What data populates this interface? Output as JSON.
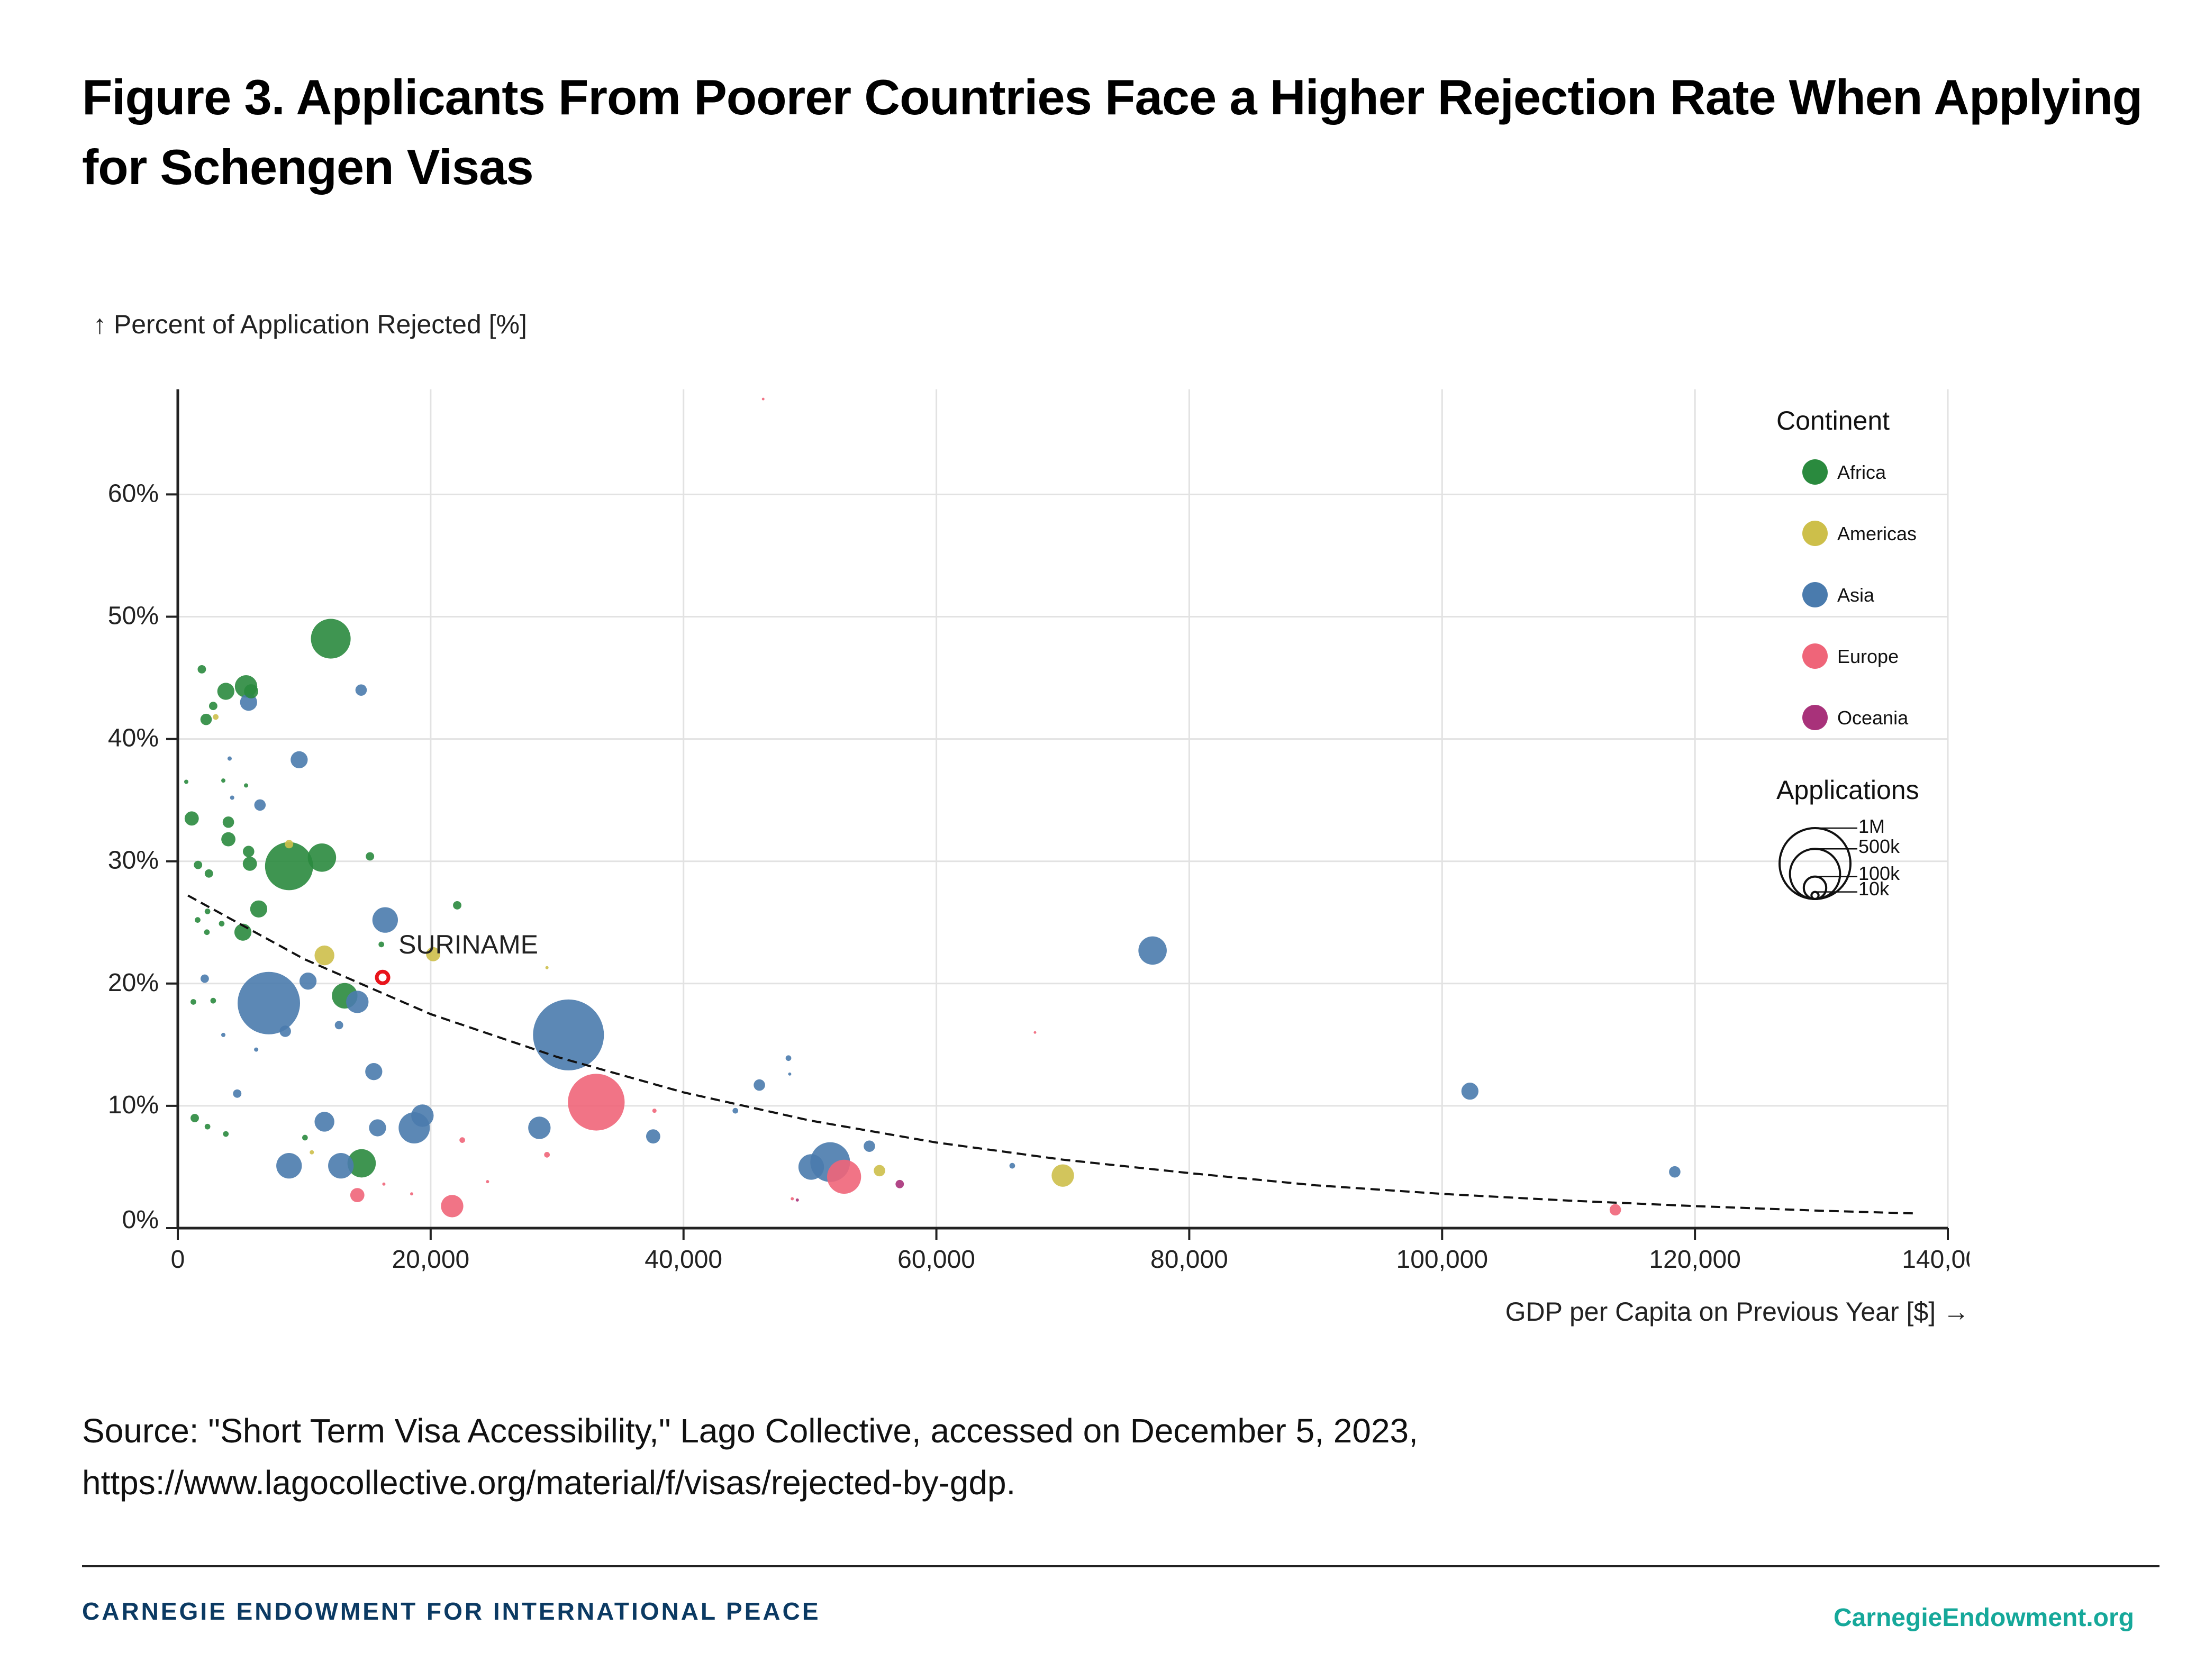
{
  "header": {
    "title": "Figure 3. Applicants From Poorer Countries Face a Higher Rejection Rate When Applying for Schengen Visas"
  },
  "source": "Source: \"Short Term Visa Accessibility,\" Lago Collective, accessed on December 5, 2023, https://www.lagocollective.org/material/f/visas/rejected-by-gdp.",
  "footer": {
    "brand": "CARNEGIE ENDOWMENT FOR INTERNATIONAL PEACE",
    "site": "CarnegieEndowment.org"
  },
  "chart_data": {
    "type": "scatter",
    "title": "",
    "xlabel": "GDP per Capita on Previous Year [$] →",
    "ylabel": "↑ Percent of Application Rejected [%]",
    "xlim": [
      0,
      140000
    ],
    "ylim": [
      0,
      68.6
    ],
    "xticks": [
      0,
      20000,
      40000,
      60000,
      80000,
      100000,
      120000,
      140000
    ],
    "xtick_labels": [
      "0",
      "20,000",
      "40,000",
      "60,000",
      "80,000",
      "100,000",
      "120,000",
      "140,000"
    ],
    "yticks": [
      0,
      10,
      20,
      30,
      40,
      50,
      60
    ],
    "ytick_labels": [
      "0%",
      "10%",
      "20%",
      "30%",
      "40%",
      "50%",
      "60%"
    ],
    "grid": true,
    "legend_placement": "right",
    "color_legend": {
      "title": "Continent",
      "items": [
        {
          "name": "Africa",
          "color": "#2a8a3e"
        },
        {
          "name": "Americas",
          "color": "#cdbf4a"
        },
        {
          "name": "Asia",
          "color": "#4a7bad"
        },
        {
          "name": "Europe",
          "color": "#ef6579"
        },
        {
          "name": "Oceania",
          "color": "#a8327a"
        }
      ]
    },
    "size_legend": {
      "title": "Applications",
      "items": [
        {
          "label": "1M",
          "value": 1000000
        },
        {
          "label": "500k",
          "value": 500000
        },
        {
          "label": "100k",
          "value": 100000
        },
        {
          "label": "10k",
          "value": 10000
        }
      ]
    },
    "annotation": {
      "label": "SURINAME",
      "gdp": 16200,
      "rejected": 20.5,
      "color": "#e8141b"
    },
    "trendline": {
      "style": "dashed",
      "points": [
        [
          800,
          27.2
        ],
        [
          10000,
          22.0
        ],
        [
          20000,
          17.5
        ],
        [
          30000,
          14.0
        ],
        [
          40000,
          11.1
        ],
        [
          50000,
          8.8
        ],
        [
          60000,
          7.0
        ],
        [
          70000,
          5.6
        ],
        [
          80000,
          4.5
        ],
        [
          90000,
          3.5
        ],
        [
          100000,
          2.8
        ],
        [
          110000,
          2.25
        ],
        [
          120000,
          1.8
        ],
        [
          130000,
          1.42
        ],
        [
          137400,
          1.2
        ]
      ]
    },
    "points": [
      {
        "c": "Africa",
        "x": 12100,
        "y": 48.2,
        "apps": 314000
      },
      {
        "c": "Africa",
        "x": 5400,
        "y": 44.3,
        "apps": 100000
      },
      {
        "c": "Africa",
        "x": 3800,
        "y": 43.9,
        "apps": 58000
      },
      {
        "c": "Africa",
        "x": 5800,
        "y": 43.9,
        "apps": 40000
      },
      {
        "c": "Africa",
        "x": 1900,
        "y": 45.7,
        "apps": 14000
      },
      {
        "c": "Africa",
        "x": 2800,
        "y": 42.7,
        "apps": 14000
      },
      {
        "c": "Africa",
        "x": 2240,
        "y": 41.6,
        "apps": 26000
      },
      {
        "c": "Africa",
        "x": 1100,
        "y": 33.5,
        "apps": 40000
      },
      {
        "c": "Africa",
        "x": 4000,
        "y": 33.2,
        "apps": 26000
      },
      {
        "c": "Africa",
        "x": 4000,
        "y": 31.8,
        "apps": 40000
      },
      {
        "c": "Africa",
        "x": 5700,
        "y": 29.8,
        "apps": 40000
      },
      {
        "c": "Africa",
        "x": 5600,
        "y": 30.8,
        "apps": 26000
      },
      {
        "c": "Africa",
        "x": 8800,
        "y": 29.6,
        "apps": 460000
      },
      {
        "c": "Africa",
        "x": 11400,
        "y": 30.3,
        "apps": 160000
      },
      {
        "c": "Africa",
        "x": 15200,
        "y": 30.4,
        "apps": 14000
      },
      {
        "c": "Africa",
        "x": 6400,
        "y": 26.1,
        "apps": 58000
      },
      {
        "c": "Africa",
        "x": 2460,
        "y": 29.0,
        "apps": 14000
      },
      {
        "c": "Africa",
        "x": 1600,
        "y": 29.7,
        "apps": 14000
      },
      {
        "c": "Africa",
        "x": 5150,
        "y": 24.2,
        "apps": 58000
      },
      {
        "c": "Africa",
        "x": 22100,
        "y": 26.4,
        "apps": 14000
      },
      {
        "c": "Africa",
        "x": 13200,
        "y": 19.0,
        "apps": 130000
      },
      {
        "c": "Africa",
        "x": 14540,
        "y": 5.3,
        "apps": 160000
      },
      {
        "c": "Africa",
        "x": 1340,
        "y": 9.0,
        "apps": 14000
      },
      {
        "c": "Africa",
        "x": 2350,
        "y": 8.3,
        "apps": 6400
      },
      {
        "c": "Africa",
        "x": 1230,
        "y": 18.5,
        "apps": 6400
      },
      {
        "c": "Africa",
        "x": 2800,
        "y": 18.6,
        "apps": 6400
      },
      {
        "c": "Africa",
        "x": 1570,
        "y": 25.2,
        "apps": 6400
      },
      {
        "c": "Africa",
        "x": 2350,
        "y": 25.9,
        "apps": 6400
      },
      {
        "c": "Africa",
        "x": 3470,
        "y": 24.9,
        "apps": 6400
      },
      {
        "c": "Africa",
        "x": 2300,
        "y": 24.2,
        "apps": 6400
      },
      {
        "c": "Africa",
        "x": 16100,
        "y": 23.2,
        "apps": 6400
      },
      {
        "c": "Africa",
        "x": 10060,
        "y": 7.4,
        "apps": 6400
      },
      {
        "c": "Africa",
        "x": 3800,
        "y": 7.7,
        "apps": 6400
      },
      {
        "c": "Africa",
        "x": 670,
        "y": 36.5,
        "apps": 3600
      },
      {
        "c": "Africa",
        "x": 3600,
        "y": 36.6,
        "apps": 3600
      },
      {
        "c": "Africa",
        "x": 5400,
        "y": 36.2,
        "apps": 3600
      },
      {
        "c": "Americas",
        "x": 11600,
        "y": 22.3,
        "apps": 78000
      },
      {
        "c": "Americas",
        "x": 20200,
        "y": 22.4,
        "apps": 40000
      },
      {
        "c": "Americas",
        "x": 70000,
        "y": 4.3,
        "apps": 100000
      },
      {
        "c": "Americas",
        "x": 55500,
        "y": 4.7,
        "apps": 26000
      },
      {
        "c": "Americas",
        "x": 3000,
        "y": 41.8,
        "apps": 6400
      },
      {
        "c": "Americas",
        "x": 8800,
        "y": 31.4,
        "apps": 14000
      },
      {
        "c": "Americas",
        "x": 10600,
        "y": 6.2,
        "apps": 3600
      },
      {
        "c": "Americas",
        "x": 29200,
        "y": 21.3,
        "apps": 2000
      },
      {
        "c": "Asia",
        "x": 7200,
        "y": 18.4,
        "apps": 775000
      },
      {
        "c": "Asia",
        "x": 30900,
        "y": 15.8,
        "apps": 1000000
      },
      {
        "c": "Asia",
        "x": 77100,
        "y": 22.7,
        "apps": 160000
      },
      {
        "c": "Asia",
        "x": 102200,
        "y": 11.2,
        "apps": 58000
      },
      {
        "c": "Asia",
        "x": 118400,
        "y": 4.6,
        "apps": 26000
      },
      {
        "c": "Asia",
        "x": 51600,
        "y": 5.4,
        "apps": 314000
      },
      {
        "c": "Asia",
        "x": 50100,
        "y": 5.0,
        "apps": 130000
      },
      {
        "c": "Asia",
        "x": 16400,
        "y": 25.2,
        "apps": 130000
      },
      {
        "c": "Asia",
        "x": 14200,
        "y": 18.5,
        "apps": 100000
      },
      {
        "c": "Asia",
        "x": 9600,
        "y": 38.3,
        "apps": 58000
      },
      {
        "c": "Asia",
        "x": 5600,
        "y": 43.0,
        "apps": 58000
      },
      {
        "c": "Asia",
        "x": 14500,
        "y": 44.0,
        "apps": 26000
      },
      {
        "c": "Asia",
        "x": 6500,
        "y": 34.6,
        "apps": 26000
      },
      {
        "c": "Asia",
        "x": 10300,
        "y": 20.2,
        "apps": 58000
      },
      {
        "c": "Asia",
        "x": 8500,
        "y": 16.1,
        "apps": 26000
      },
      {
        "c": "Asia",
        "x": 2130,
        "y": 20.4,
        "apps": 14000
      },
      {
        "c": "Asia",
        "x": 12750,
        "y": 16.6,
        "apps": 14000
      },
      {
        "c": "Asia",
        "x": 15500,
        "y": 12.8,
        "apps": 58000
      },
      {
        "c": "Asia",
        "x": 4700,
        "y": 11.0,
        "apps": 14000
      },
      {
        "c": "Asia",
        "x": 11600,
        "y": 8.7,
        "apps": 78000
      },
      {
        "c": "Asia",
        "x": 15800,
        "y": 8.2,
        "apps": 58000
      },
      {
        "c": "Asia",
        "x": 18700,
        "y": 8.2,
        "apps": 194000
      },
      {
        "c": "Asia",
        "x": 19350,
        "y": 9.2,
        "apps": 100000
      },
      {
        "c": "Asia",
        "x": 8800,
        "y": 5.1,
        "apps": 130000
      },
      {
        "c": "Asia",
        "x": 12900,
        "y": 5.1,
        "apps": 130000
      },
      {
        "c": "Asia",
        "x": 28600,
        "y": 8.2,
        "apps": 100000
      },
      {
        "c": "Asia",
        "x": 37600,
        "y": 7.5,
        "apps": 40000
      },
      {
        "c": "Asia",
        "x": 46000,
        "y": 11.7,
        "apps": 26000
      },
      {
        "c": "Asia",
        "x": 48300,
        "y": 13.9,
        "apps": 6400
      },
      {
        "c": "Asia",
        "x": 44100,
        "y": 9.6,
        "apps": 6400
      },
      {
        "c": "Asia",
        "x": 54700,
        "y": 6.7,
        "apps": 26000
      },
      {
        "c": "Asia",
        "x": 66000,
        "y": 5.1,
        "apps": 6400
      },
      {
        "c": "Asia",
        "x": 4100,
        "y": 38.4,
        "apps": 3600
      },
      {
        "c": "Asia",
        "x": 4300,
        "y": 35.2,
        "apps": 3600
      },
      {
        "c": "Asia",
        "x": 6200,
        "y": 14.6,
        "apps": 3600
      },
      {
        "c": "Asia",
        "x": 3600,
        "y": 15.8,
        "apps": 3600
      },
      {
        "c": "Asia",
        "x": 48400,
        "y": 12.6,
        "apps": 2000
      },
      {
        "c": "Europe",
        "x": 33100,
        "y": 10.3,
        "apps": 640000
      },
      {
        "c": "Europe",
        "x": 52700,
        "y": 4.2,
        "apps": 230000
      },
      {
        "c": "Europe",
        "x": 21700,
        "y": 1.8,
        "apps": 100000
      },
      {
        "c": "Europe",
        "x": 14200,
        "y": 2.7,
        "apps": 40000
      },
      {
        "c": "Europe",
        "x": 113700,
        "y": 1.5,
        "apps": 26000
      },
      {
        "c": "Europe",
        "x": 22500,
        "y": 7.2,
        "apps": 6400
      },
      {
        "c": "Europe",
        "x": 29200,
        "y": 6.0,
        "apps": 6400
      },
      {
        "c": "Europe",
        "x": 37700,
        "y": 9.6,
        "apps": 3600
      },
      {
        "c": "Europe",
        "x": 16300,
        "y": 3.6,
        "apps": 2000
      },
      {
        "c": "Europe",
        "x": 18500,
        "y": 2.8,
        "apps": 2000
      },
      {
        "c": "Europe",
        "x": 24500,
        "y": 3.8,
        "apps": 2000
      },
      {
        "c": "Europe",
        "x": 48600,
        "y": 2.4,
        "apps": 2000
      },
      {
        "c": "Europe",
        "x": 46300,
        "y": 67.8,
        "apps": 1000
      },
      {
        "c": "Europe",
        "x": 67800,
        "y": 16.0,
        "apps": 1000
      },
      {
        "c": "Oceania",
        "x": 57100,
        "y": 3.6,
        "apps": 14000
      },
      {
        "c": "Oceania",
        "x": 49000,
        "y": 2.3,
        "apps": 2000
      }
    ]
  }
}
